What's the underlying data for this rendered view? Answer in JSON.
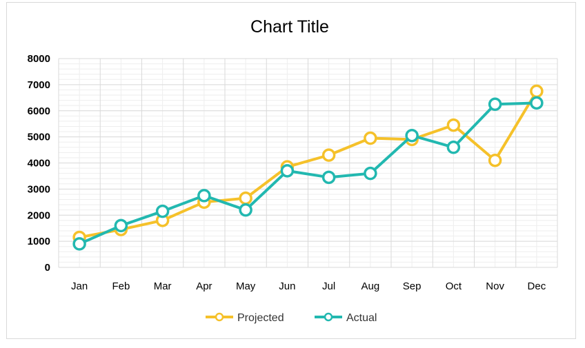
{
  "chart_data": {
    "type": "line",
    "title": "Chart Title",
    "xlabel": "",
    "ylabel": "",
    "categories": [
      "Jan",
      "Feb",
      "Mar",
      "Apr",
      "May",
      "Jun",
      "Jul",
      "Aug",
      "Sep",
      "Oct",
      "Nov",
      "Dec"
    ],
    "ylim": [
      0,
      8000
    ],
    "yticks": [
      0,
      1000,
      2000,
      3000,
      4000,
      5000,
      6000,
      7000,
      8000
    ],
    "grid": true,
    "legend_position": "bottom",
    "series": [
      {
        "name": "Projected",
        "color": "#f5c12a",
        "values": [
          1150,
          1450,
          1800,
          2500,
          2650,
          3850,
          4300,
          4950,
          4900,
          5450,
          4100,
          6750
        ]
      },
      {
        "name": "Actual",
        "color": "#22b8b0",
        "values": [
          900,
          1600,
          2150,
          2750,
          2200,
          3700,
          3450,
          3600,
          5050,
          4600,
          6250,
          6300
        ]
      }
    ]
  }
}
